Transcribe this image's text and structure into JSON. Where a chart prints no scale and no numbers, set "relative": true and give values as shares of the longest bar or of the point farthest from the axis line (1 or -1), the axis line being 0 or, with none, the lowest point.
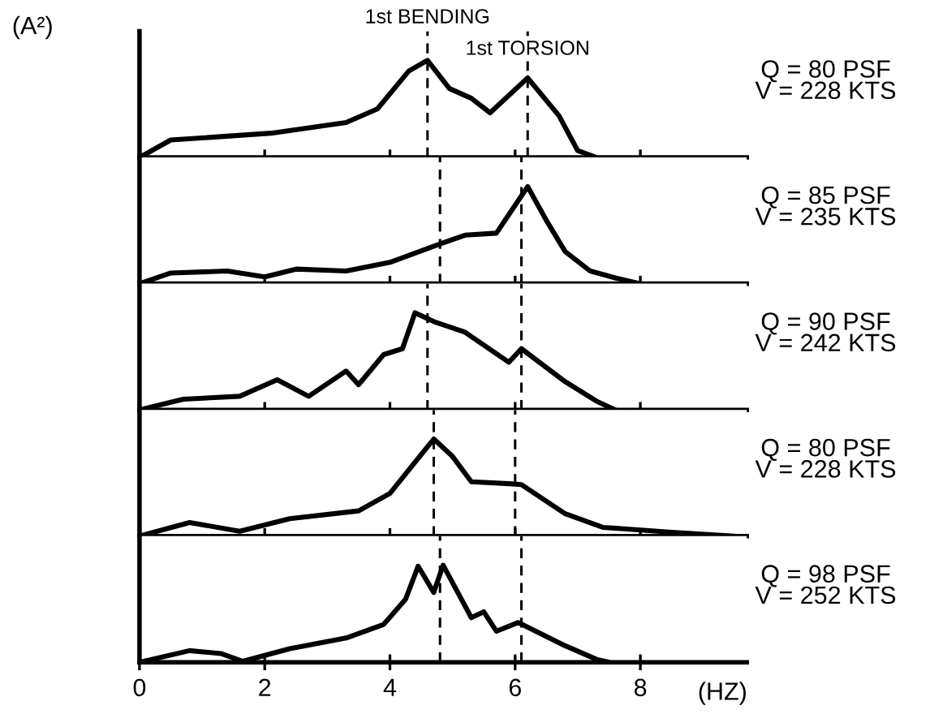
{
  "chart_data": [
    {
      "type": "line",
      "relative": true,
      "ylabel": "(A²)",
      "xlim": [
        0,
        9.7
      ],
      "xticks": [
        0,
        2,
        4,
        6,
        8
      ],
      "tick_labels": false,
      "grid": false,
      "color": "#000000",
      "x": [
        0,
        0.5,
        2.1,
        3.3,
        3.8,
        4.3,
        4.6,
        4.95,
        5.3,
        5.6,
        6.2,
        6.7,
        7.0,
        7.3
      ],
      "values": [
        0,
        0.18,
        0.25,
        0.36,
        0.5,
        0.89,
        1,
        0.71,
        0.61,
        0.46,
        0.82,
        0.43,
        0.07,
        0
      ],
      "ref_lines": [
        {
          "axis": "x",
          "value": 4.6,
          "label": "1st BENDING",
          "line_style": "dashed"
        },
        {
          "axis": "x",
          "value": 6.2,
          "label": "1st TORSION",
          "line_style": "dashed"
        }
      ],
      "annotations": [
        "Q = 80 PSF\nV = 228 KTS"
      ]
    },
    {
      "type": "line",
      "relative": true,
      "xlim": [
        0,
        9.7
      ],
      "xticks": [
        0,
        2,
        4,
        6,
        8
      ],
      "tick_labels": false,
      "grid": false,
      "color": "#000000",
      "x": [
        0,
        0.5,
        1.4,
        2.0,
        2.5,
        3.3,
        4.0,
        4.8,
        5.2,
        5.7,
        6.2,
        6.5,
        6.8,
        7.2,
        7.6,
        8.0
      ],
      "values": [
        0,
        0.11,
        0.13,
        0.07,
        0.15,
        0.13,
        0.22,
        0.41,
        0.5,
        0.52,
        1,
        0.65,
        0.33,
        0.13,
        0.06,
        0
      ],
      "ref_lines": [
        {
          "axis": "x",
          "value": 4.8,
          "line_style": "dashed"
        },
        {
          "axis": "x",
          "value": 6.1,
          "line_style": "dashed"
        }
      ],
      "annotations": [
        "Q = 85 PSF\nV = 235 KTS"
      ]
    },
    {
      "type": "line",
      "relative": true,
      "xlim": [
        0,
        9.7
      ],
      "xticks": [
        0,
        2,
        4,
        6,
        8
      ],
      "tick_labels": false,
      "grid": false,
      "color": "#000000",
      "x": [
        0,
        0.7,
        1.6,
        2.2,
        2.7,
        3.3,
        3.5,
        3.9,
        4.2,
        4.4,
        4.7,
        5.2,
        5.9,
        6.1,
        6.8,
        7.3,
        7.6
      ],
      "values": [
        0,
        0.11,
        0.14,
        0.31,
        0.14,
        0.4,
        0.26,
        0.57,
        0.63,
        1,
        0.91,
        0.8,
        0.49,
        0.63,
        0.29,
        0.09,
        0
      ],
      "ref_lines": [
        {
          "axis": "x",
          "value": 4.6,
          "line_style": "dashed"
        },
        {
          "axis": "x",
          "value": 6.1,
          "line_style": "dashed"
        }
      ],
      "annotations": [
        "Q = 90 PSF\nV = 242 KTS"
      ]
    },
    {
      "type": "line",
      "relative": true,
      "xlim": [
        0,
        9.7
      ],
      "xticks": [
        0,
        2,
        4,
        6,
        8
      ],
      "tick_labels": false,
      "grid": false,
      "color": "#000000",
      "x": [
        0,
        0.8,
        1.6,
        2.4,
        3.5,
        4.0,
        4.7,
        5.0,
        5.3,
        5.9,
        6.1,
        6.8,
        7.4,
        8.5,
        9.5
      ],
      "values": [
        0,
        0.14,
        0.05,
        0.18,
        0.26,
        0.44,
        1,
        0.82,
        0.56,
        0.54,
        0.53,
        0.23,
        0.09,
        0.04,
        0
      ],
      "ref_lines": [
        {
          "axis": "x",
          "value": 4.7,
          "line_style": "dashed"
        },
        {
          "axis": "x",
          "value": 6.0,
          "line_style": "dashed"
        }
      ],
      "annotations": [
        "Q = 80 PSF\nV = 228 KTS"
      ]
    },
    {
      "type": "line",
      "relative": true,
      "xlabel": "(HZ)",
      "xlim": [
        0,
        9.7
      ],
      "xticks": [
        0,
        2,
        4,
        6,
        8
      ],
      "tick_labels": "x",
      "grid": false,
      "color": "#000000",
      "x": [
        0,
        0.8,
        1.3,
        1.65,
        2.4,
        3.3,
        3.9,
        4.25,
        4.45,
        4.7,
        4.85,
        5.3,
        5.5,
        5.7,
        6.05,
        6.8,
        7.3,
        7.5
      ],
      "values": [
        0,
        0.12,
        0.09,
        0.01,
        0.14,
        0.25,
        0.39,
        0.65,
        0.99,
        0.72,
        1,
        0.46,
        0.52,
        0.32,
        0.41,
        0.17,
        0.03,
        0
      ],
      "ref_lines": [
        {
          "axis": "x",
          "value": 4.8,
          "line_style": "dashed"
        },
        {
          "axis": "x",
          "value": 6.1,
          "line_style": "dashed"
        }
      ],
      "annotations": [
        "Q = 98 PSF\nV = 252 KTS"
      ]
    }
  ]
}
